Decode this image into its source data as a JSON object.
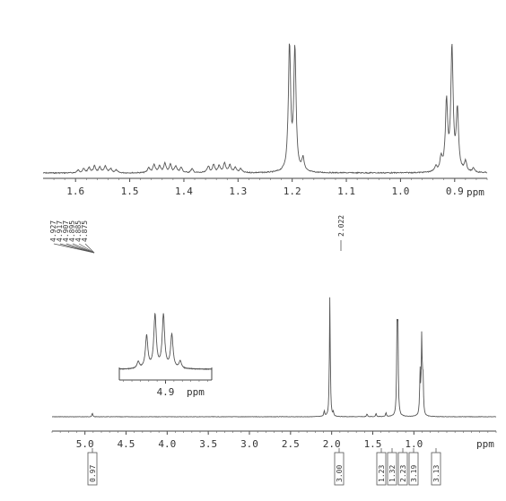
{
  "chart_data": [
    {
      "type": "line",
      "title": "",
      "xlabel": "ppm",
      "xlim": [
        1.66,
        0.84
      ],
      "x_reversed": true,
      "x_ticks": [
        "1.6",
        "1.5",
        "1.4",
        "1.3",
        "1.2",
        "1.1",
        "1.0",
        "0.9"
      ],
      "peaks": [
        {
          "x": 1.595,
          "y": 0.02
        },
        {
          "x": 1.585,
          "y": 0.03
        },
        {
          "x": 1.575,
          "y": 0.04
        },
        {
          "x": 1.565,
          "y": 0.05
        },
        {
          "x": 1.555,
          "y": 0.04
        },
        {
          "x": 1.545,
          "y": 0.05
        },
        {
          "x": 1.535,
          "y": 0.03
        },
        {
          "x": 1.525,
          "y": 0.02
        },
        {
          "x": 1.465,
          "y": 0.04
        },
        {
          "x": 1.455,
          "y": 0.06
        },
        {
          "x": 1.445,
          "y": 0.05
        },
        {
          "x": 1.435,
          "y": 0.07
        },
        {
          "x": 1.425,
          "y": 0.06
        },
        {
          "x": 1.415,
          "y": 0.05
        },
        {
          "x": 1.405,
          "y": 0.04
        },
        {
          "x": 1.385,
          "y": 0.03
        },
        {
          "x": 1.355,
          "y": 0.05
        },
        {
          "x": 1.345,
          "y": 0.06
        },
        {
          "x": 1.335,
          "y": 0.05
        },
        {
          "x": 1.325,
          "y": 0.07
        },
        {
          "x": 1.315,
          "y": 0.06
        },
        {
          "x": 1.305,
          "y": 0.04
        },
        {
          "x": 1.295,
          "y": 0.03
        },
        {
          "x": 1.205,
          "y": 0.96
        },
        {
          "x": 1.195,
          "y": 0.94
        },
        {
          "x": 1.18,
          "y": 0.1
        },
        {
          "x": 0.935,
          "y": 0.04
        },
        {
          "x": 0.925,
          "y": 0.1
        },
        {
          "x": 0.915,
          "y": 0.53
        },
        {
          "x": 0.905,
          "y": 0.95
        },
        {
          "x": 0.895,
          "y": 0.46
        },
        {
          "x": 0.88,
          "y": 0.08
        },
        {
          "x": 0.865,
          "y": 0.03
        }
      ]
    },
    {
      "type": "line",
      "title": "",
      "xlabel": "ppm",
      "xlim": [
        5.4,
        0.0
      ],
      "x_reversed": true,
      "x_ticks": [
        "5.0",
        "4.5",
        "4.0",
        "3.5",
        "3.0",
        "2.5",
        "2.0",
        "1.5",
        "1.0"
      ],
      "peaks": [
        {
          "x": 4.91,
          "y": 0.03
        },
        {
          "x": 2.09,
          "y": 0.05
        },
        {
          "x": 2.022,
          "y": 1.0
        },
        {
          "x": 1.98,
          "y": 0.03
        },
        {
          "x": 1.57,
          "y": 0.025
        },
        {
          "x": 1.46,
          "y": 0.03
        },
        {
          "x": 1.34,
          "y": 0.035
        },
        {
          "x": 1.205,
          "y": 0.68
        },
        {
          "x": 1.195,
          "y": 0.68
        },
        {
          "x": 0.925,
          "y": 0.36
        },
        {
          "x": 0.905,
          "y": 0.66
        },
        {
          "x": 0.89,
          "y": 0.34
        }
      ],
      "peak_labels": [
        "4.927",
        "4.917",
        "4.907",
        "4.895",
        "4.885",
        "4.875",
        "2.022"
      ],
      "integrals": [
        {
          "x": 4.91,
          "label": "0.97"
        },
        {
          "x": 2.02,
          "label": "3.00"
        },
        {
          "x": 1.56,
          "label": "1.23"
        },
        {
          "x": 1.46,
          "label": "1.32"
        },
        {
          "x": 1.35,
          "label": "2.23"
        },
        {
          "x": 1.2,
          "label": "3.19"
        },
        {
          "x": 0.91,
          "label": "3.13"
        }
      ]
    },
    {
      "type": "line",
      "title": "",
      "xlabel": "ppm",
      "xlim": [
        5.01,
        4.79
      ],
      "x_reversed": true,
      "x_ticks": [
        "4.9"
      ],
      "peaks": [
        {
          "x": 4.965,
          "y": 0.12
        },
        {
          "x": 4.945,
          "y": 0.58
        },
        {
          "x": 4.925,
          "y": 0.95
        },
        {
          "x": 4.905,
          "y": 0.95
        },
        {
          "x": 4.885,
          "y": 0.6
        },
        {
          "x": 4.865,
          "y": 0.13
        }
      ]
    }
  ]
}
